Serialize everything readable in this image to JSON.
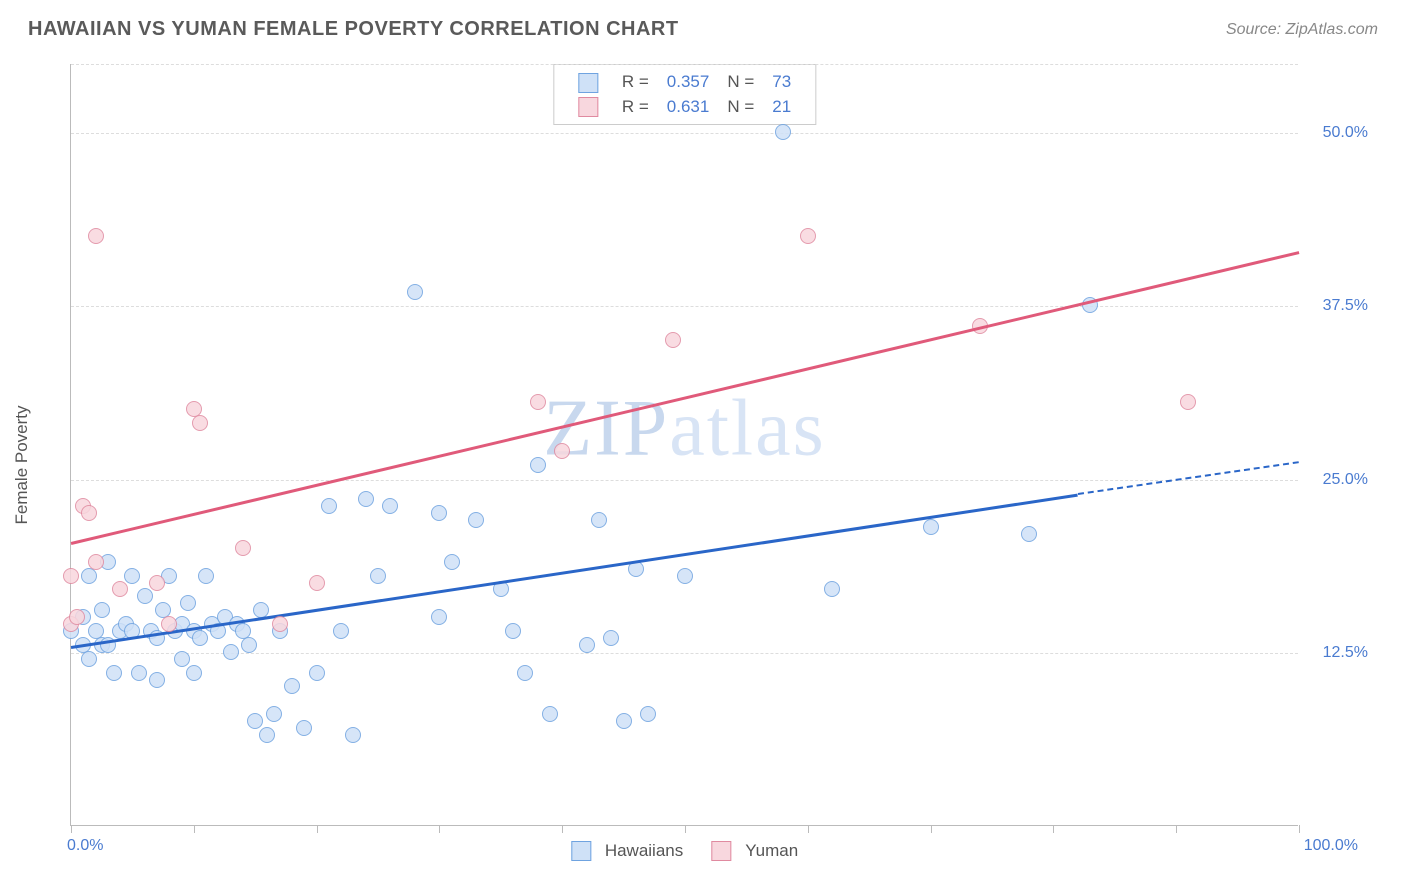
{
  "title": "HAWAIIAN VS YUMAN FEMALE POVERTY CORRELATION CHART",
  "source": "Source: ZipAtlas.com",
  "ylabel": "Female Poverty",
  "watermark_a": "ZIP",
  "watermark_b": "atlas",
  "chart": {
    "type": "scatter",
    "xlim": [
      0,
      100
    ],
    "ylim": [
      0,
      55
    ],
    "background_color": "#ffffff",
    "grid_color": "#dddddd",
    "x_ticks": [
      0,
      10,
      20,
      30,
      40,
      50,
      60,
      70,
      80,
      90,
      100
    ],
    "x_tick_labels": [
      {
        "v": 0,
        "t": "0.0%"
      },
      {
        "v": 100,
        "t": "100.0%"
      }
    ],
    "y_grid": [
      12.5,
      25.0,
      37.5,
      50.0,
      55.0
    ],
    "y_tick_labels": [
      {
        "v": 12.5,
        "t": "12.5%"
      },
      {
        "v": 25.0,
        "t": "25.0%"
      },
      {
        "v": 37.5,
        "t": "37.5%"
      },
      {
        "v": 50.0,
        "t": "50.0%"
      }
    ],
    "series": [
      {
        "name": "Hawaiians",
        "fill": "#cfe1f7",
        "stroke": "#6fa3e0",
        "trend_color": "#2a66c8",
        "trend_x0": 0,
        "trend_y0": 13.0,
        "trend_x1": 82,
        "trend_y1": 24.0,
        "trend_dash_x1": 100,
        "trend_dash_y1": 26.3,
        "R": "0.357",
        "N": "73",
        "marker_r": 8,
        "data": [
          [
            0,
            14
          ],
          [
            1,
            13
          ],
          [
            1,
            15
          ],
          [
            1.5,
            18
          ],
          [
            1.5,
            12
          ],
          [
            2,
            14
          ],
          [
            2.5,
            15.5
          ],
          [
            2.5,
            13
          ],
          [
            3,
            13
          ],
          [
            3,
            19
          ],
          [
            3.5,
            11
          ],
          [
            4,
            14
          ],
          [
            4.5,
            14.5
          ],
          [
            5,
            14
          ],
          [
            5,
            18
          ],
          [
            5.5,
            11
          ],
          [
            6,
            16.5
          ],
          [
            6.5,
            14
          ],
          [
            7,
            13.5
          ],
          [
            7,
            10.5
          ],
          [
            7.5,
            15.5
          ],
          [
            8,
            18
          ],
          [
            8.5,
            14
          ],
          [
            9,
            14.5
          ],
          [
            9,
            12
          ],
          [
            9.5,
            16
          ],
          [
            10,
            14
          ],
          [
            10,
            11
          ],
          [
            10.5,
            13.5
          ],
          [
            11,
            18
          ],
          [
            11.5,
            14.5
          ],
          [
            12,
            14
          ],
          [
            12.5,
            15
          ],
          [
            13,
            12.5
          ],
          [
            13.5,
            14.5
          ],
          [
            14,
            14
          ],
          [
            14.5,
            13
          ],
          [
            15,
            7.5
          ],
          [
            15.5,
            15.5
          ],
          [
            16,
            6.5
          ],
          [
            16.5,
            8
          ],
          [
            17,
            14
          ],
          [
            18,
            10
          ],
          [
            19,
            7
          ],
          [
            20,
            11
          ],
          [
            21,
            23
          ],
          [
            22,
            14
          ],
          [
            23,
            6.5
          ],
          [
            24,
            23.5
          ],
          [
            25,
            18
          ],
          [
            26,
            23
          ],
          [
            28,
            38.5
          ],
          [
            30,
            15
          ],
          [
            30,
            22.5
          ],
          [
            31,
            19
          ],
          [
            33,
            22
          ],
          [
            35,
            17
          ],
          [
            36,
            14
          ],
          [
            37,
            11
          ],
          [
            38,
            26
          ],
          [
            39,
            8
          ],
          [
            42,
            13
          ],
          [
            43,
            22
          ],
          [
            44,
            13.5
          ],
          [
            45,
            7.5
          ],
          [
            46,
            18.5
          ],
          [
            47,
            8
          ],
          [
            50,
            18
          ],
          [
            58,
            50
          ],
          [
            62,
            17
          ],
          [
            70,
            21.5
          ],
          [
            78,
            21
          ],
          [
            83,
            37.5
          ]
        ]
      },
      {
        "name": "Yuman",
        "fill": "#f8d7de",
        "stroke": "#e08aa0",
        "trend_color": "#e05a7a",
        "trend_x0": 0,
        "trend_y0": 20.5,
        "trend_x1": 100,
        "trend_y1": 41.5,
        "R": "0.631",
        "N": "21",
        "marker_r": 8,
        "data": [
          [
            0,
            18
          ],
          [
            0,
            14.5
          ],
          [
            0.5,
            15
          ],
          [
            1,
            23
          ],
          [
            1.5,
            22.5
          ],
          [
            2,
            19
          ],
          [
            2,
            42.5
          ],
          [
            4,
            17
          ],
          [
            7,
            17.5
          ],
          [
            8,
            14.5
          ],
          [
            10,
            30
          ],
          [
            10.5,
            29
          ],
          [
            14,
            20
          ],
          [
            17,
            14.5
          ],
          [
            20,
            17.5
          ],
          [
            38,
            30.5
          ],
          [
            40,
            27
          ],
          [
            49,
            35
          ],
          [
            60,
            42.5
          ],
          [
            74,
            36
          ],
          [
            91,
            30.5
          ]
        ]
      }
    ]
  },
  "legend": {
    "rows": [
      {
        "sw_fill": "#cfe1f7",
        "sw_stroke": "#6fa3e0",
        "R_label": "R =",
        "R": "0.357",
        "N_label": "N =",
        "N": "73"
      },
      {
        "sw_fill": "#f8d7de",
        "sw_stroke": "#e08aa0",
        "R_label": "R =",
        "R": "0.631",
        "N_label": "N =",
        "N": "21"
      }
    ]
  },
  "bottom_legend": [
    {
      "sw_fill": "#cfe1f7",
      "sw_stroke": "#6fa3e0",
      "label": "Hawaiians"
    },
    {
      "sw_fill": "#f8d7de",
      "sw_stroke": "#e08aa0",
      "label": "Yuman"
    }
  ]
}
